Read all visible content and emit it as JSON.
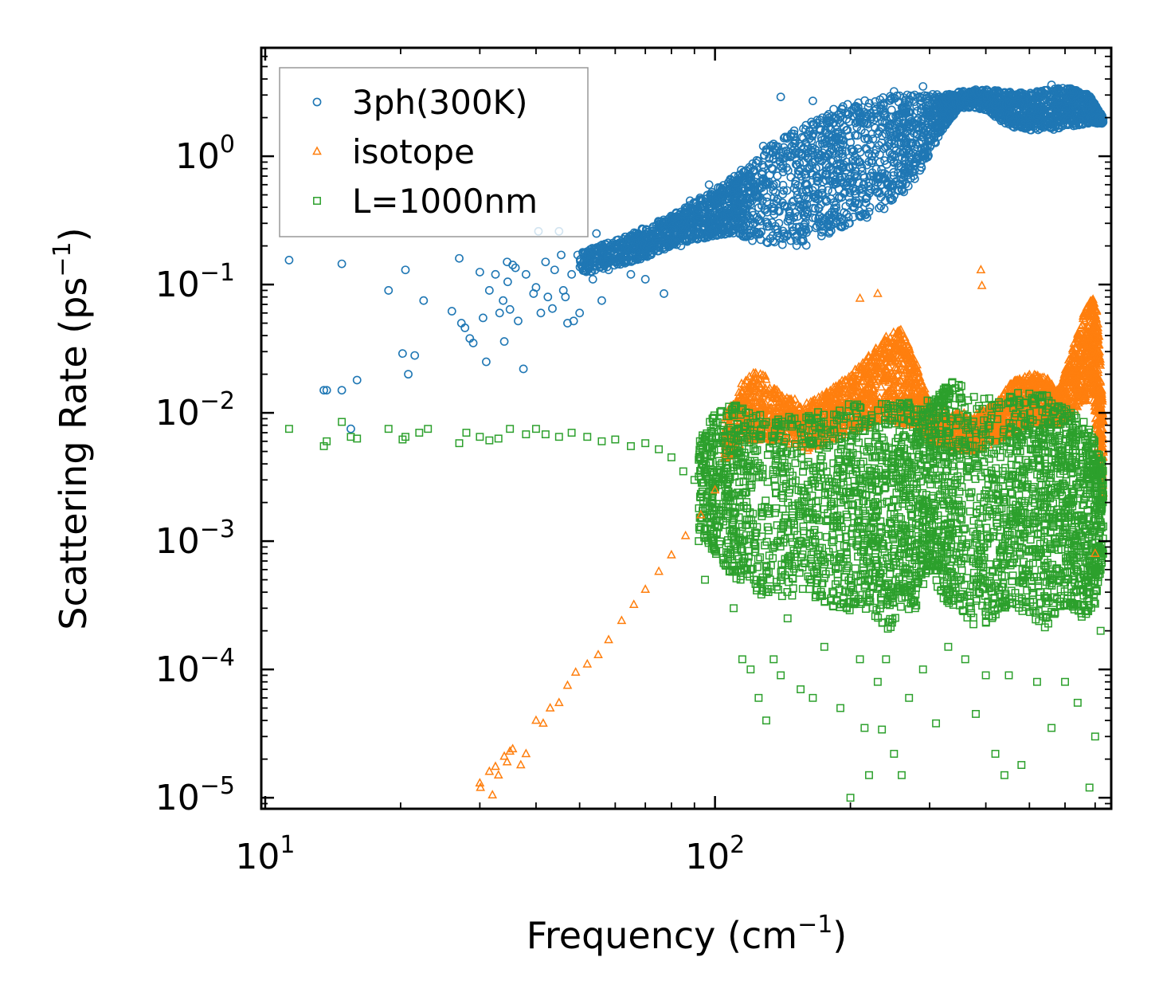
{
  "chart_data": {
    "type": "scatter",
    "xscale": "log",
    "yscale": "log",
    "xlabel": "Frequency (cm⁻¹)",
    "ylabel": "Scattering Rate (ps⁻¹)",
    "xlabel_main": "Frequency (cm",
    "xlabel_sup": "−1",
    "xlabel_end": ")",
    "ylabel_main": "Scattering Rate (ps",
    "ylabel_sup": "−1",
    "ylabel_end": ")",
    "xlim": [
      9.8,
      760
    ],
    "ylim": [
      8.2e-06,
      7.0
    ],
    "x_ticks": [
      {
        "value": 10,
        "base": "10",
        "exp": "1"
      },
      {
        "value": 100,
        "base": "10",
        "exp": "2"
      }
    ],
    "y_ticks": [
      {
        "value": 1,
        "base": "10",
        "exp": "0"
      },
      {
        "value": 0.1,
        "base": "10",
        "exp": "−1"
      },
      {
        "value": 0.01,
        "base": "10",
        "exp": "−2"
      },
      {
        "value": 0.001,
        "base": "10",
        "exp": "−3"
      },
      {
        "value": 0.0001,
        "base": "10",
        "exp": "−4"
      },
      {
        "value": 1e-05,
        "base": "10",
        "exp": "−5"
      }
    ],
    "legend_position": "top-left",
    "series": [
      {
        "name": "3ph(300K)",
        "marker": "circle",
        "color": "#1f77b4",
        "points": [
          [
            11.3,
            0.155
          ],
          [
            13.5,
            0.015
          ],
          [
            13.7,
            0.015
          ],
          [
            14.8,
            0.145
          ],
          [
            14.8,
            0.015
          ],
          [
            15.5,
            0.0075
          ],
          [
            16.0,
            0.018
          ],
          [
            18.8,
            0.09
          ],
          [
            20.2,
            0.029
          ],
          [
            20.5,
            0.13
          ],
          [
            20.8,
            0.02
          ],
          [
            21.5,
            0.028
          ],
          [
            22.5,
            0.075
          ],
          [
            26.0,
            0.062
          ],
          [
            27.0,
            0.16
          ],
          [
            27.3,
            0.05
          ],
          [
            27.8,
            0.046
          ],
          [
            28.5,
            0.038
          ],
          [
            29.0,
            0.035
          ],
          [
            30.0,
            0.125
          ],
          [
            30.5,
            0.055
          ],
          [
            31.0,
            0.025
          ],
          [
            31.5,
            0.09
          ],
          [
            32.5,
            0.12
          ],
          [
            33.2,
            0.06
          ],
          [
            33.8,
            0.075
          ],
          [
            34.0,
            0.036
          ],
          [
            34.5,
            0.15
          ],
          [
            34.6,
            0.105
          ],
          [
            35.0,
            0.064
          ],
          [
            35.5,
            0.142
          ],
          [
            36.0,
            0.135
          ],
          [
            36.5,
            0.052
          ],
          [
            37.5,
            0.022
          ],
          [
            38.0,
            0.12
          ],
          [
            39.5,
            0.085
          ],
          [
            40.0,
            0.095
          ],
          [
            40.5,
            0.26
          ],
          [
            41.0,
            0.06
          ],
          [
            42.0,
            0.15
          ],
          [
            42.5,
            0.08
          ],
          [
            43.5,
            0.065
          ],
          [
            44.0,
            0.13
          ],
          [
            45.0,
            0.26
          ],
          [
            45.5,
            0.17
          ],
          [
            46.0,
            0.09
          ],
          [
            46.5,
            0.08
          ],
          [
            47.0,
            0.05
          ],
          [
            48.0,
            0.12
          ],
          [
            48.5,
            0.052
          ],
          [
            49.5,
            0.17
          ],
          [
            50.0,
            0.06
          ],
          [
            52.0,
            0.14
          ],
          [
            53.5,
            0.11
          ],
          [
            54.5,
            0.25
          ],
          [
            56.0,
            0.075
          ],
          [
            58.0,
            0.13
          ],
          [
            60.0,
            0.2
          ],
          [
            63.0,
            0.15
          ],
          [
            65.0,
            0.12
          ],
          [
            67.5,
            0.25
          ],
          [
            70.0,
            0.11
          ],
          [
            74.0,
            0.22
          ],
          [
            77.0,
            0.085
          ],
          [
            80.0,
            0.3
          ],
          [
            84.0,
            0.2
          ],
          [
            88.0,
            0.45
          ],
          [
            92.0,
            0.32
          ],
          [
            97.0,
            0.6
          ],
          [
            105.0,
            0.4
          ],
          [
            110.0,
            0.5
          ],
          [
            115.0,
            0.3
          ],
          [
            120.0,
            0.8
          ],
          [
            128.0,
            1.2
          ],
          [
            135.0,
            0.6
          ],
          [
            140.0,
            2.9
          ],
          [
            148.0,
            1.5
          ],
          [
            155.0,
            0.8
          ],
          [
            165.0,
            2.7
          ],
          [
            175.0,
            1.0
          ],
          [
            185.0,
            2.0
          ],
          [
            200.0,
            0.7
          ],
          [
            215.0,
            2.2
          ],
          [
            230.0,
            1.5
          ],
          [
            250.0,
            3.2
          ],
          [
            270.0,
            1.8
          ],
          [
            290.0,
            3.5
          ],
          [
            310.0,
            2.5
          ],
          [
            340.0,
            3.0
          ],
          [
            380.0,
            3.3
          ],
          [
            420.0,
            2.2
          ],
          [
            460.0,
            3.0
          ],
          [
            500.0,
            2.3
          ],
          [
            560.0,
            3.6
          ],
          [
            620.0,
            2.8
          ],
          [
            680.0,
            2.3
          ],
          [
            720.0,
            1.9
          ]
        ],
        "band": [
          [
            50,
            0.12,
            0.18
          ],
          [
            60,
            0.14,
            0.22
          ],
          [
            70,
            0.16,
            0.28
          ],
          [
            80,
            0.2,
            0.35
          ],
          [
            90,
            0.22,
            0.45
          ],
          [
            100,
            0.24,
            0.55
          ],
          [
            110,
            0.25,
            0.7
          ],
          [
            120,
            0.22,
            0.9
          ],
          [
            140,
            0.2,
            1.4
          ],
          [
            160,
            0.2,
            1.8
          ],
          [
            180,
            0.25,
            2.3
          ],
          [
            200,
            0.3,
            2.6
          ],
          [
            230,
            0.35,
            2.9
          ],
          [
            260,
            0.5,
            3.0
          ],
          [
            290,
            0.8,
            3.1
          ],
          [
            320,
            1.6,
            3.0
          ],
          [
            350,
            2.4,
            3.2
          ],
          [
            400,
            2.3,
            3.3
          ],
          [
            450,
            1.7,
            3.2
          ],
          [
            500,
            1.6,
            3.1
          ],
          [
            560,
            1.6,
            3.4
          ],
          [
            620,
            1.7,
            3.4
          ],
          [
            680,
            1.8,
            3.0
          ],
          [
            730,
            1.8,
            2.0
          ]
        ]
      },
      {
        "name": "isotope",
        "marker": "triangle",
        "color": "#ff7f0e",
        "points": [
          [
            30.0,
            1.3e-05
          ],
          [
            30.1,
            1.2e-05
          ],
          [
            31.5,
            1.6e-05
          ],
          [
            32.0,
            1.05e-05
          ],
          [
            32.5,
            1.75e-05
          ],
          [
            33.0,
            1.5e-05
          ],
          [
            34.0,
            2.1e-05
          ],
          [
            34.5,
            1.9e-05
          ],
          [
            35.0,
            2.3e-05
          ],
          [
            35.5,
            2.4e-05
          ],
          [
            37.0,
            1.8e-05
          ],
          [
            38.0,
            2.2e-05
          ],
          [
            40.0,
            4e-05
          ],
          [
            41.5,
            3.8e-05
          ],
          [
            43.0,
            5e-05
          ],
          [
            45.0,
            5.5e-05
          ],
          [
            47.0,
            7.5e-05
          ],
          [
            49.0,
            9.5e-05
          ],
          [
            52.0,
            0.00011
          ],
          [
            55.0,
            0.00013
          ],
          [
            58.0,
            0.00017
          ],
          [
            62.0,
            0.00024
          ],
          [
            66.0,
            0.00032
          ],
          [
            70.0,
            0.00042
          ],
          [
            75.0,
            0.00058
          ],
          [
            80.0,
            0.00078
          ],
          [
            86.0,
            0.0011
          ],
          [
            93.0,
            0.0016
          ],
          [
            100.0,
            0.0025
          ],
          [
            210.0,
            0.078
          ],
          [
            230.0,
            0.085
          ],
          [
            390.0,
            0.13
          ],
          [
            392.0,
            0.098
          ],
          [
            395.0,
            0.01
          ],
          [
            700.0,
            0.0008
          ]
        ],
        "band": [
          [
            105,
            0.004,
            0.009
          ],
          [
            115,
            0.006,
            0.018
          ],
          [
            125,
            0.006,
            0.022
          ],
          [
            140,
            0.006,
            0.014
          ],
          [
            160,
            0.005,
            0.012
          ],
          [
            180,
            0.006,
            0.015
          ],
          [
            200,
            0.007,
            0.02
          ],
          [
            220,
            0.008,
            0.028
          ],
          [
            240,
            0.009,
            0.04
          ],
          [
            260,
            0.008,
            0.045
          ],
          [
            280,
            0.008,
            0.025
          ],
          [
            300,
            0.006,
            0.012
          ],
          [
            340,
            0.005,
            0.01
          ],
          [
            380,
            0.005,
            0.01
          ],
          [
            420,
            0.006,
            0.012
          ],
          [
            460,
            0.007,
            0.018
          ],
          [
            500,
            0.008,
            0.02
          ],
          [
            540,
            0.008,
            0.02
          ],
          [
            580,
            0.008,
            0.015
          ],
          [
            620,
            0.01,
            0.03
          ],
          [
            660,
            0.012,
            0.06
          ],
          [
            690,
            0.015,
            0.08
          ],
          [
            710,
            0.005,
            0.06
          ],
          [
            730,
            0.002,
            0.01
          ]
        ]
      },
      {
        "name": "L=1000nm",
        "marker": "square",
        "color": "#2ca02c",
        "points": [
          [
            11.3,
            0.0075
          ],
          [
            13.5,
            0.0055
          ],
          [
            13.7,
            0.006
          ],
          [
            14.8,
            0.0085
          ],
          [
            15.5,
            0.0065
          ],
          [
            16.0,
            0.0063
          ],
          [
            18.8,
            0.0075
          ],
          [
            20.2,
            0.0062
          ],
          [
            20.5,
            0.0065
          ],
          [
            22.0,
            0.007
          ],
          [
            23.0,
            0.0075
          ],
          [
            27.0,
            0.0058
          ],
          [
            28.0,
            0.007
          ],
          [
            30.0,
            0.0065
          ],
          [
            31.5,
            0.0061
          ],
          [
            33.0,
            0.0063
          ],
          [
            35.0,
            0.0075
          ],
          [
            38.0,
            0.0068
          ],
          [
            40.0,
            0.0075
          ],
          [
            42.0,
            0.0068
          ],
          [
            45.0,
            0.0065
          ],
          [
            48.0,
            0.007
          ],
          [
            52.0,
            0.0065
          ],
          [
            56.0,
            0.006
          ],
          [
            60.0,
            0.0062
          ],
          [
            65.0,
            0.0055
          ],
          [
            70.0,
            0.0058
          ],
          [
            75.0,
            0.0052
          ],
          [
            80.0,
            0.0045
          ],
          [
            85.0,
            0.0035
          ],
          [
            90.0,
            0.003
          ],
          [
            92.0,
            0.001
          ],
          [
            95.0,
            0.0005
          ],
          [
            110.0,
            0.0003
          ],
          [
            115.0,
            0.00012
          ],
          [
            120.0,
            0.0001
          ],
          [
            125.0,
            6e-05
          ],
          [
            130.0,
            4e-05
          ],
          [
            135.0,
            0.00012
          ],
          [
            140.0,
            9e-05
          ],
          [
            145.0,
            0.00025
          ],
          [
            155.0,
            7e-05
          ],
          [
            165.0,
            6e-05
          ],
          [
            175.0,
            0.00015
          ],
          [
            190.0,
            5e-05
          ],
          [
            200.0,
            1e-05
          ],
          [
            210.0,
            0.00012
          ],
          [
            215.0,
            3.5e-05
          ],
          [
            220.0,
            1.5e-05
          ],
          [
            230.0,
            8e-05
          ],
          [
            235.0,
            3.4e-05
          ],
          [
            240.0,
            0.00012
          ],
          [
            250.0,
            2.2e-05
          ],
          [
            260.0,
            1.5e-05
          ],
          [
            270.0,
            6e-05
          ],
          [
            290.0,
            0.0001
          ],
          [
            310.0,
            3.8e-05
          ],
          [
            330.0,
            0.00015
          ],
          [
            360.0,
            0.00012
          ],
          [
            380.0,
            4.5e-05
          ],
          [
            400.0,
            9e-05
          ],
          [
            420.0,
            2.2e-05
          ],
          [
            440.0,
            1.5e-05
          ],
          [
            450.0,
            9e-05
          ],
          [
            480.0,
            1.8e-05
          ],
          [
            520.0,
            8e-05
          ],
          [
            560.0,
            3.5e-05
          ],
          [
            600.0,
            8e-05
          ],
          [
            640.0,
            5.5e-05
          ],
          [
            680.0,
            1.2e-05
          ],
          [
            700.0,
            3e-05
          ],
          [
            720.0,
            0.0002
          ]
        ],
        "band": [
          [
            92,
            0.0012,
            0.006
          ],
          [
            100,
            0.0008,
            0.01
          ],
          [
            110,
            0.0005,
            0.012
          ],
          [
            120,
            0.0004,
            0.01
          ],
          [
            140,
            0.00035,
            0.009
          ],
          [
            160,
            0.0004,
            0.01
          ],
          [
            180,
            0.0003,
            0.011
          ],
          [
            200,
            0.00025,
            0.012
          ],
          [
            220,
            0.0003,
            0.011
          ],
          [
            240,
            0.0002,
            0.012
          ],
          [
            260,
            0.00025,
            0.013
          ],
          [
            280,
            0.0003,
            0.012
          ],
          [
            300,
            0.0006,
            0.013
          ],
          [
            320,
            0.00035,
            0.016
          ],
          [
            340,
            0.0003,
            0.018
          ],
          [
            380,
            0.0002,
            0.015
          ],
          [
            420,
            0.00025,
            0.013
          ],
          [
            460,
            0.0003,
            0.014
          ],
          [
            500,
            0.00025,
            0.015
          ],
          [
            540,
            0.0002,
            0.014
          ],
          [
            580,
            0.0003,
            0.012
          ],
          [
            620,
            0.0003,
            0.01
          ],
          [
            660,
            0.00025,
            0.009
          ],
          [
            700,
            0.0003,
            0.006
          ],
          [
            730,
            0.0008,
            0.004
          ]
        ]
      }
    ]
  }
}
